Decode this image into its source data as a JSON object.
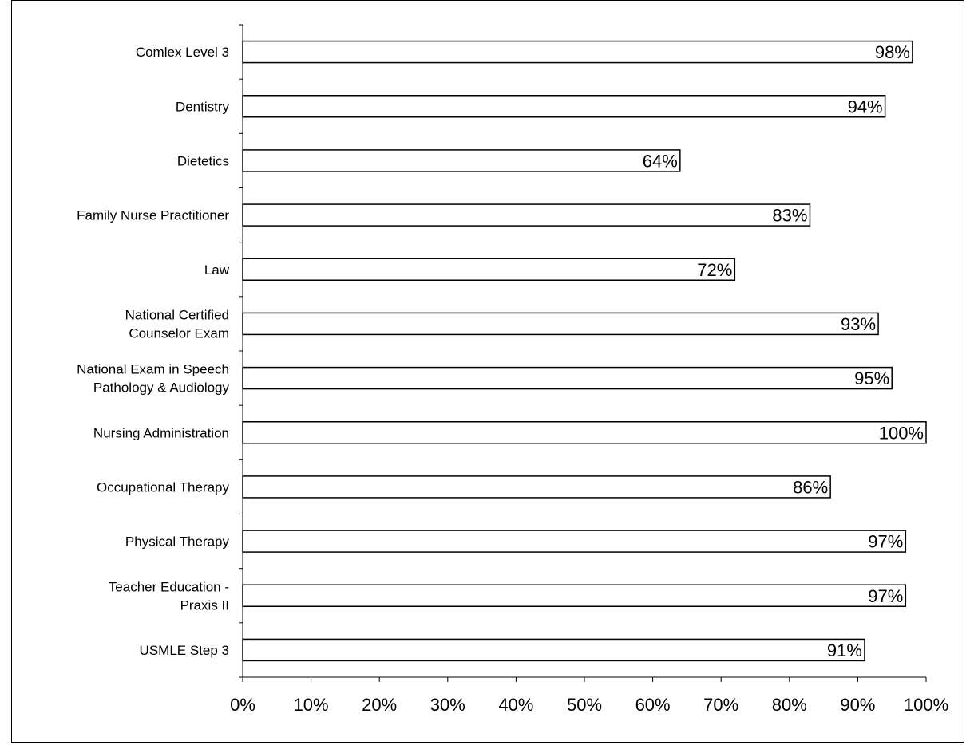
{
  "chart_data": {
    "type": "bar",
    "orientation": "horizontal",
    "categories": [
      "Comlex Level 3",
      "Dentistry",
      "Dietetics",
      "Family Nurse Practitioner",
      "Law",
      "National Certified Counselor Exam",
      "National Exam in Speech Pathology & Audiology",
      "Nursing Administration",
      "Occupational Therapy",
      "Physical Therapy",
      "Teacher Education - Praxis II",
      "USMLE Step 3"
    ],
    "category_lines": [
      [
        "Comlex Level 3"
      ],
      [
        "Dentistry"
      ],
      [
        "Dietetics"
      ],
      [
        "Family Nurse Practitioner"
      ],
      [
        "Law"
      ],
      [
        "National Certified",
        "Counselor Exam"
      ],
      [
        "National Exam in Speech",
        "Pathology & Audiology"
      ],
      [
        "Nursing Administration"
      ],
      [
        "Occupational Therapy"
      ],
      [
        "Physical Therapy"
      ],
      [
        "Teacher Education -",
        "Praxis II"
      ],
      [
        "USMLE Step 3"
      ]
    ],
    "values": [
      98,
      94,
      64,
      83,
      72,
      93,
      95,
      100,
      86,
      97,
      97,
      91
    ],
    "value_labels": [
      "98%",
      "94%",
      "64%",
      "83%",
      "72%",
      "93%",
      "95%",
      "100%",
      "86%",
      "97%",
      "97%",
      "91%"
    ],
    "xlim": [
      0,
      100
    ],
    "x_ticks": [
      0,
      10,
      20,
      30,
      40,
      50,
      60,
      70,
      80,
      90,
      100
    ],
    "x_tick_labels": [
      "0%",
      "10%",
      "20%",
      "30%",
      "40%",
      "50%",
      "60%",
      "70%",
      "80%",
      "90%",
      "100%"
    ],
    "title": "",
    "xlabel": "",
    "ylabel": "",
    "grid": false,
    "legend": "none",
    "bar_fill": "#ffffff",
    "bar_stroke": "#000000"
  }
}
